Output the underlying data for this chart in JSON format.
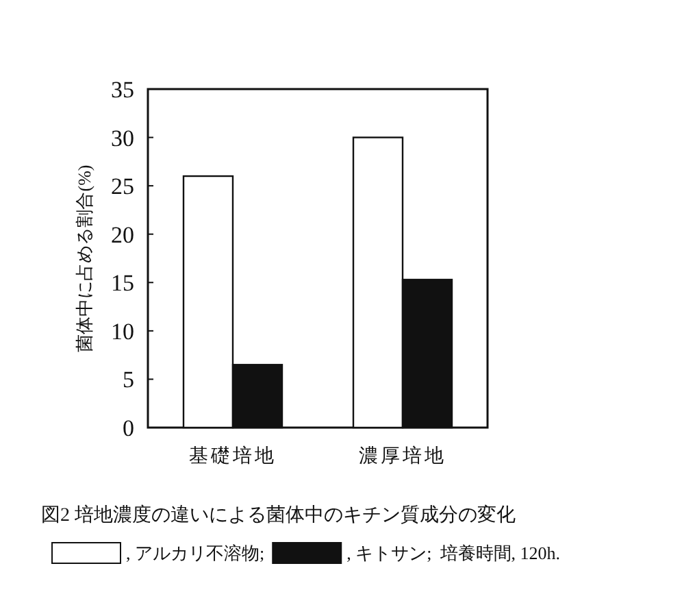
{
  "chart_data": {
    "type": "bar",
    "title": "図2 培地濃度の違いによる菌体中のキチン質成分の変化",
    "ylabel": "菌体中に占める割合(%)",
    "categories": [
      "基礎培地",
      "濃厚培地"
    ],
    "series": [
      {
        "name": ", アルカリ不溶物;",
        "color": "#ffffff",
        "values": [
          26,
          30
        ]
      },
      {
        "name": ", キトサン;",
        "color": "#111111",
        "values": [
          6.5,
          15.3
        ]
      }
    ],
    "annotations": [
      "培養時間, 120h."
    ],
    "ylim": [
      0,
      35
    ],
    "yticks": [
      0,
      5,
      10,
      15,
      20,
      25,
      30,
      35
    ],
    "legend": "bottom",
    "grid": false
  }
}
